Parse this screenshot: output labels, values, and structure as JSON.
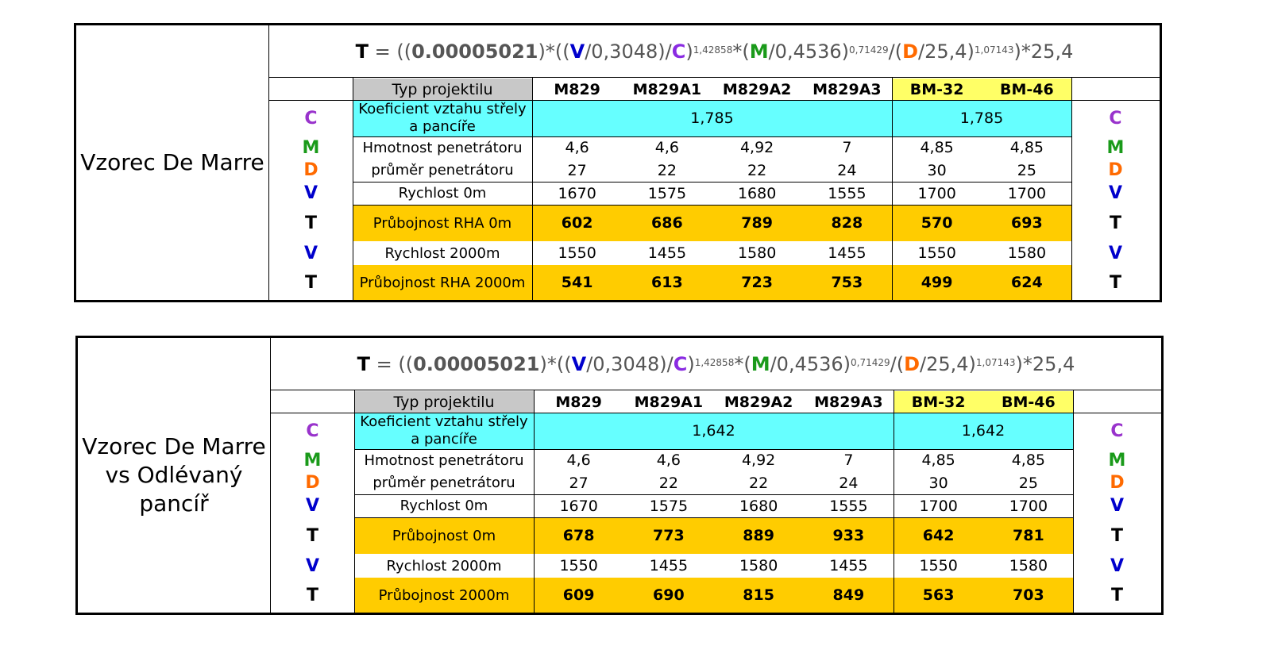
{
  "formula": {
    "T": "T",
    "eq": " = ((",
    "coef": "0.00005021",
    "p1": ")*((",
    "V": "V",
    "p2": "/0,3048)/",
    "C": "C",
    "p3": ")",
    "exp1": "1,42858",
    "p4": "*(",
    "M": "M",
    "p5": "/0,4536)",
    "exp2": "0,71429",
    "p6": "/(",
    "D": "D",
    "p7": "/25,4)",
    "exp3": "1,07143",
    "p8": ")*25,4"
  },
  "columns": [
    "M829",
    "M829A1",
    "M829A2",
    "M829A3",
    "BM-32",
    "BM-46"
  ],
  "header_label": "Typ projektilu",
  "letters": {
    "C": "C",
    "M": "M",
    "D": "D",
    "V": "V",
    "T": "T"
  },
  "colors": {
    "C": "#9933cc",
    "M": "#1a9a1a",
    "D": "#ff6a00",
    "V": "#0000cc",
    "cyan": "#66ffff",
    "gold": "#ffcc00",
    "yellow": "#ffff66",
    "gray": "#c8c8c8"
  },
  "tables": [
    {
      "title": "Vzorec De Marre",
      "rows": {
        "coef_label": "Koeficient vztahu střely a pancíře",
        "coef_nato": "1,785",
        "coef_ru": "1,785",
        "mass_label": "Hmotnost penetrátoru",
        "mass": [
          "4,6",
          "4,6",
          "4,92",
          "7",
          "4,85",
          "4,85"
        ],
        "diam_label": "průměr penetrátoru",
        "diam": [
          "27",
          "22",
          "22",
          "24",
          "30",
          "25"
        ],
        "v0_label": "Rychlost 0m",
        "v0": [
          "1670",
          "1575",
          "1680",
          "1555",
          "1700",
          "1700"
        ],
        "t0_label": "Průbojnost RHA 0m",
        "t0": [
          "602",
          "686",
          "789",
          "828",
          "570",
          "693"
        ],
        "v2000_label": "Rychlost 2000m",
        "v2000": [
          "1550",
          "1455",
          "1580",
          "1455",
          "1550",
          "1580"
        ],
        "t2000_label": "Průbojnost RHA 2000m",
        "t2000": [
          "541",
          "613",
          "723",
          "753",
          "499",
          "624"
        ]
      }
    },
    {
      "title": "Vzorec De Marre vs Odlévaný pancíř",
      "rows": {
        "coef_label": "Koeficient vztahu střely a pancíře",
        "coef_nato": "1,642",
        "coef_ru": "1,642",
        "mass_label": "Hmotnost penetrátoru",
        "mass": [
          "4,6",
          "4,6",
          "4,92",
          "7",
          "4,85",
          "4,85"
        ],
        "diam_label": "průměr penetrátoru",
        "diam": [
          "27",
          "22",
          "22",
          "24",
          "30",
          "25"
        ],
        "v0_label": "Rychlost 0m",
        "v0": [
          "1670",
          "1575",
          "1680",
          "1555",
          "1700",
          "1700"
        ],
        "t0_label": "Průbojnost 0m",
        "t0": [
          "678",
          "773",
          "889",
          "933",
          "642",
          "781"
        ],
        "v2000_label": "Rychlost 2000m",
        "v2000": [
          "1550",
          "1455",
          "1580",
          "1455",
          "1550",
          "1580"
        ],
        "t2000_label": "Průbojnost 2000m",
        "t2000": [
          "609",
          "690",
          "815",
          "849",
          "563",
          "703"
        ]
      }
    }
  ]
}
